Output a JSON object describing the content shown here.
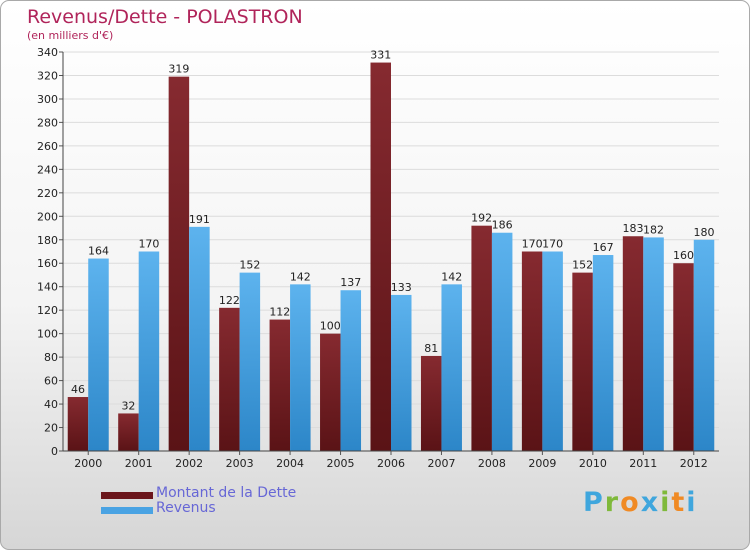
{
  "header": {
    "title": "Revenus/Dette - POLASTRON",
    "subtitle": "(en milliers d'€)"
  },
  "legend": {
    "dette_label": "Montant de la Dette",
    "revenus_label": "Revenus"
  },
  "logo": {
    "letters": [
      "P",
      "r",
      "o",
      "x",
      "i",
      "t",
      "i"
    ],
    "colors": [
      "#3fa6dd",
      "#7fb93b",
      "#f08a24",
      "#3fa6dd",
      "#7fb93b",
      "#f08a24",
      "#3fa6dd"
    ]
  },
  "colors": {
    "dette": "#731f24",
    "revenus": "#4aa3e3",
    "title": "#b0245a",
    "legend_text": "#6767d6"
  },
  "chart_data": {
    "type": "bar",
    "title": "Revenus/Dette - POLASTRON",
    "subtitle": "(en milliers d'€)",
    "categories": [
      "2000",
      "2001",
      "2002",
      "2003",
      "2004",
      "2005",
      "2006",
      "2007",
      "2008",
      "2009",
      "2010",
      "2011",
      "2012"
    ],
    "series": [
      {
        "name": "Montant de la Dette",
        "values": [
          46,
          32,
          319,
          122,
          112,
          100,
          331,
          81,
          192,
          170,
          152,
          183,
          160
        ]
      },
      {
        "name": "Revenus",
        "values": [
          164,
          170,
          191,
          152,
          142,
          137,
          133,
          142,
          186,
          170,
          167,
          182,
          180
        ]
      }
    ],
    "ylim": [
      0,
      340
    ],
    "yticks": [
      0,
      20,
      40,
      60,
      80,
      100,
      120,
      140,
      160,
      180,
      200,
      220,
      240,
      260,
      280,
      300,
      320,
      340
    ],
    "grid": true,
    "legend_position": "bottom-left"
  }
}
